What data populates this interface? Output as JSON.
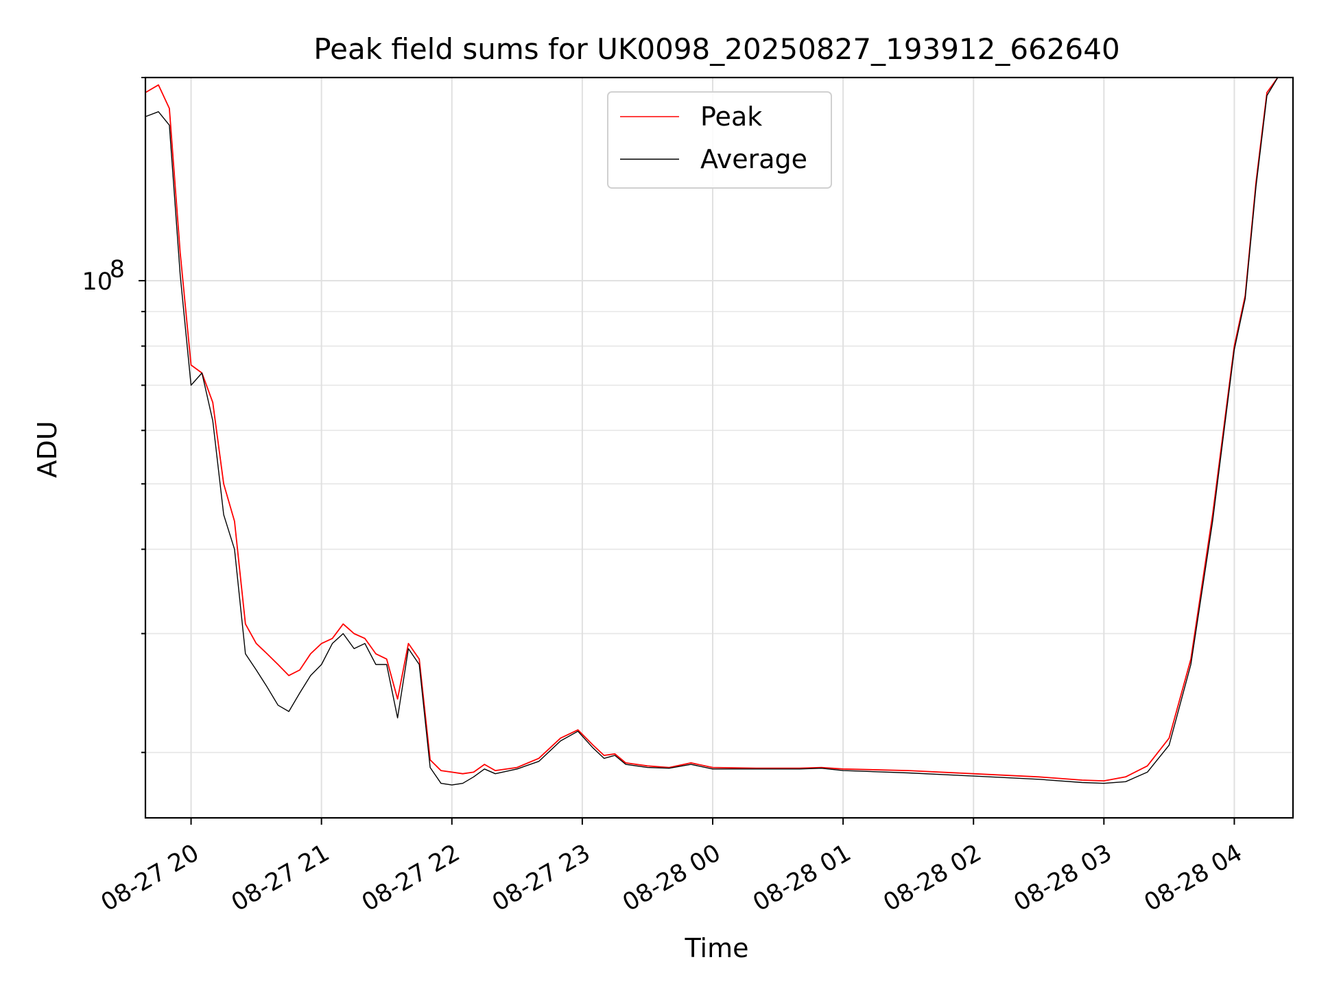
{
  "chart_data": {
    "type": "line",
    "title": "Peak field sums for UK0098_20250827_193912_662640",
    "xlabel": "Time",
    "ylabel": "ADU",
    "y_scale": "log",
    "y_tick_label": {
      "base": "10",
      "exponent": "8",
      "value": 100000000
    },
    "ylim": [
      16000000,
      200000000
    ],
    "xlim": [
      "2025-08-27 19:39",
      "2025-08-28 04:27"
    ],
    "x_ticks": [
      "08-27 20",
      "08-27 21",
      "08-27 22",
      "08-27 23",
      "08-28 00",
      "08-28 01",
      "08-28 02",
      "08-28 03",
      "08-28 04"
    ],
    "grid": true,
    "legend_position": "upper center",
    "colors": {
      "peak": "#ff0000",
      "average": "#000000"
    },
    "series": [
      {
        "name": "Peak",
        "color": "#ff0000",
        "points": [
          [
            "2025-08-27 19:39",
            190000000
          ],
          [
            "2025-08-27 19:45",
            195000000
          ],
          [
            "2025-08-27 19:50",
            180000000
          ],
          [
            "2025-08-27 19:55",
            110000000
          ],
          [
            "2025-08-27 20:00",
            75000000
          ],
          [
            "2025-08-27 20:05",
            73000000
          ],
          [
            "2025-08-27 20:10",
            66000000
          ],
          [
            "2025-08-27 20:15",
            50000000
          ],
          [
            "2025-08-27 20:20",
            44000000
          ],
          [
            "2025-08-27 20:25",
            31000000
          ],
          [
            "2025-08-27 20:30",
            29000000
          ],
          [
            "2025-08-27 20:35",
            28000000
          ],
          [
            "2025-08-27 20:40",
            27000000
          ],
          [
            "2025-08-27 20:45",
            26000000
          ],
          [
            "2025-08-27 20:50",
            26500000
          ],
          [
            "2025-08-27 20:55",
            28000000
          ],
          [
            "2025-08-27 21:00",
            29000000
          ],
          [
            "2025-08-27 21:05",
            29500000
          ],
          [
            "2025-08-27 21:10",
            31000000
          ],
          [
            "2025-08-27 21:15",
            30000000
          ],
          [
            "2025-08-27 21:20",
            29500000
          ],
          [
            "2025-08-27 21:25",
            28000000
          ],
          [
            "2025-08-27 21:30",
            27500000
          ],
          [
            "2025-08-27 21:35",
            24000000
          ],
          [
            "2025-08-27 21:40",
            29000000
          ],
          [
            "2025-08-27 21:45",
            27500000
          ],
          [
            "2025-08-27 21:50",
            19500000
          ],
          [
            "2025-08-27 21:55",
            18800000
          ],
          [
            "2025-08-27 22:00",
            18700000
          ],
          [
            "2025-08-27 22:05",
            18600000
          ],
          [
            "2025-08-27 22:10",
            18700000
          ],
          [
            "2025-08-27 22:15",
            19200000
          ],
          [
            "2025-08-27 22:20",
            18800000
          ],
          [
            "2025-08-27 22:30",
            19000000
          ],
          [
            "2025-08-27 22:40",
            19600000
          ],
          [
            "2025-08-27 22:50",
            21000000
          ],
          [
            "2025-08-27 22:58",
            21600000
          ],
          [
            "2025-08-27 23:05",
            20500000
          ],
          [
            "2025-08-27 23:10",
            19800000
          ],
          [
            "2025-08-27 23:15",
            19900000
          ],
          [
            "2025-08-27 23:20",
            19300000
          ],
          [
            "2025-08-27 23:30",
            19100000
          ],
          [
            "2025-08-27 23:40",
            19000000
          ],
          [
            "2025-08-27 23:50",
            19300000
          ],
          [
            "2025-08-28 00:00",
            19000000
          ],
          [
            "2025-08-28 00:20",
            18950000
          ],
          [
            "2025-08-28 00:40",
            18950000
          ],
          [
            "2025-08-28 00:50",
            19000000
          ],
          [
            "2025-08-28 01:00",
            18900000
          ],
          [
            "2025-08-28 01:30",
            18800000
          ],
          [
            "2025-08-28 02:00",
            18600000
          ],
          [
            "2025-08-28 02:30",
            18400000
          ],
          [
            "2025-08-28 02:50",
            18200000
          ],
          [
            "2025-08-28 03:00",
            18150000
          ],
          [
            "2025-08-28 03:10",
            18400000
          ],
          [
            "2025-08-28 03:20",
            19100000
          ],
          [
            "2025-08-28 03:30",
            21000000
          ],
          [
            "2025-08-28 03:40",
            27500000
          ],
          [
            "2025-08-28 03:50",
            45000000
          ],
          [
            "2025-08-28 04:00",
            80000000
          ],
          [
            "2025-08-28 04:05",
            95000000
          ],
          [
            "2025-08-28 04:10",
            140000000
          ],
          [
            "2025-08-28 04:15",
            190000000
          ],
          [
            "2025-08-28 04:20",
            200000000
          ],
          [
            "2025-08-28 04:27",
            200000000
          ]
        ]
      },
      {
        "name": "Average",
        "color": "#000000",
        "points": [
          [
            "2025-08-27 19:39",
            175000000
          ],
          [
            "2025-08-27 19:45",
            178000000
          ],
          [
            "2025-08-27 19:50",
            170000000
          ],
          [
            "2025-08-27 19:55",
            102000000
          ],
          [
            "2025-08-27 20:00",
            70000000
          ],
          [
            "2025-08-27 20:05",
            73000000
          ],
          [
            "2025-08-27 20:10",
            62000000
          ],
          [
            "2025-08-27 20:15",
            45000000
          ],
          [
            "2025-08-27 20:20",
            40000000
          ],
          [
            "2025-08-27 20:25",
            28000000
          ],
          [
            "2025-08-27 20:30",
            26500000
          ],
          [
            "2025-08-27 20:35",
            25000000
          ],
          [
            "2025-08-27 20:40",
            23500000
          ],
          [
            "2025-08-27 20:45",
            23000000
          ],
          [
            "2025-08-27 20:50",
            24500000
          ],
          [
            "2025-08-27 20:55",
            26000000
          ],
          [
            "2025-08-27 21:00",
            27000000
          ],
          [
            "2025-08-27 21:05",
            29000000
          ],
          [
            "2025-08-27 21:10",
            30000000
          ],
          [
            "2025-08-27 21:15",
            28500000
          ],
          [
            "2025-08-27 21:20",
            29000000
          ],
          [
            "2025-08-27 21:25",
            27000000
          ],
          [
            "2025-08-27 21:30",
            27000000
          ],
          [
            "2025-08-27 21:35",
            22500000
          ],
          [
            "2025-08-27 21:40",
            28500000
          ],
          [
            "2025-08-27 21:45",
            27000000
          ],
          [
            "2025-08-27 21:50",
            19000000
          ],
          [
            "2025-08-27 21:55",
            18000000
          ],
          [
            "2025-08-27 22:00",
            17900000
          ],
          [
            "2025-08-27 22:05",
            18000000
          ],
          [
            "2025-08-27 22:10",
            18400000
          ],
          [
            "2025-08-27 22:15",
            18900000
          ],
          [
            "2025-08-27 22:20",
            18600000
          ],
          [
            "2025-08-27 22:30",
            18900000
          ],
          [
            "2025-08-27 22:40",
            19400000
          ],
          [
            "2025-08-27 22:50",
            20800000
          ],
          [
            "2025-08-27 22:58",
            21500000
          ],
          [
            "2025-08-27 23:05",
            20300000
          ],
          [
            "2025-08-27 23:10",
            19600000
          ],
          [
            "2025-08-27 23:15",
            19800000
          ],
          [
            "2025-08-27 23:20",
            19200000
          ],
          [
            "2025-08-27 23:30",
            19000000
          ],
          [
            "2025-08-27 23:40",
            18950000
          ],
          [
            "2025-08-27 23:50",
            19200000
          ],
          [
            "2025-08-28 00:00",
            18900000
          ],
          [
            "2025-08-28 00:20",
            18900000
          ],
          [
            "2025-08-28 00:40",
            18900000
          ],
          [
            "2025-08-28 00:50",
            18950000
          ],
          [
            "2025-08-28 01:00",
            18800000
          ],
          [
            "2025-08-28 01:30",
            18650000
          ],
          [
            "2025-08-28 02:00",
            18450000
          ],
          [
            "2025-08-28 02:30",
            18250000
          ],
          [
            "2025-08-28 02:50",
            18050000
          ],
          [
            "2025-08-28 03:00",
            18000000
          ],
          [
            "2025-08-28 03:10",
            18100000
          ],
          [
            "2025-08-28 03:20",
            18700000
          ],
          [
            "2025-08-28 03:30",
            20500000
          ],
          [
            "2025-08-28 03:40",
            27000000
          ],
          [
            "2025-08-28 03:50",
            44000000
          ],
          [
            "2025-08-28 04:00",
            79000000
          ],
          [
            "2025-08-28 04:05",
            94000000
          ],
          [
            "2025-08-28 04:10",
            138000000
          ],
          [
            "2025-08-28 04:15",
            188000000
          ],
          [
            "2025-08-28 04:20",
            200000000
          ],
          [
            "2025-08-28 04:27",
            200000000
          ]
        ]
      }
    ]
  }
}
